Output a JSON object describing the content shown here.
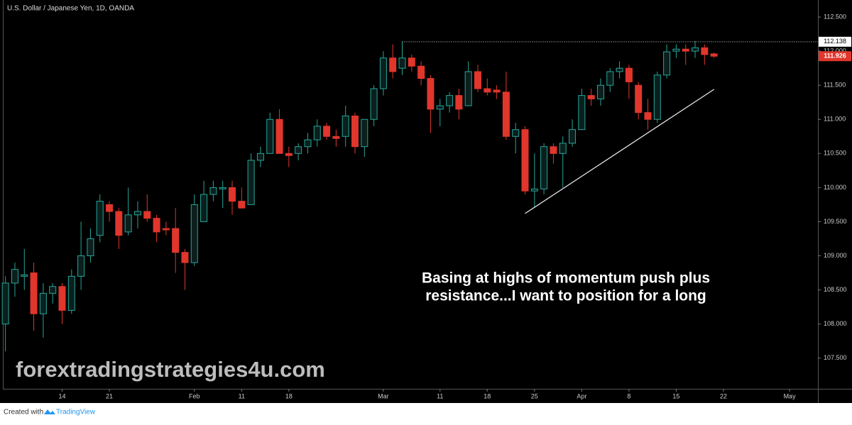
{
  "chart_data": {
    "type": "candlestick",
    "title": "U.S. Dollar / Japanese Yen, 1D, OANDA",
    "open": [
      108.0,
      108.6,
      108.7,
      108.75,
      108.15,
      108.45,
      108.55,
      108.2,
      108.7,
      109.0,
      109.3,
      109.75,
      109.65,
      109.35,
      109.6,
      109.65,
      109.55,
      109.4,
      109.4,
      109.05,
      108.9,
      109.5,
      109.9,
      109.98,
      110.0,
      109.8,
      109.75,
      110.4,
      110.5,
      111.0,
      110.5,
      110.5,
      110.6,
      110.7,
      110.9,
      110.75,
      110.75,
      111.05,
      110.6,
      111.0,
      111.45,
      111.9,
      111.75,
      111.9,
      111.78,
      111.6,
      111.15,
      111.2,
      111.35,
      111.2,
      111.7,
      111.45,
      111.43,
      111.4,
      110.75,
      110.85,
      109.95,
      109.98,
      110.6,
      110.5,
      110.65,
      110.85,
      111.35,
      111.3,
      111.5,
      111.7,
      111.75,
      111.5,
      111.1,
      111.0,
      111.65,
      112.0,
      112.03,
      112.0,
      112.05,
      111.96
    ],
    "high": [
      108.7,
      108.9,
      109.1,
      108.9,
      108.6,
      108.6,
      108.6,
      108.8,
      109.5,
      109.4,
      109.9,
      109.8,
      109.7,
      110.0,
      109.8,
      109.9,
      109.6,
      109.5,
      109.7,
      109.1,
      109.9,
      110.1,
      110.1,
      110.1,
      110.1,
      110.0,
      110.5,
      110.6,
      111.1,
      111.15,
      110.6,
      110.65,
      110.8,
      111.0,
      110.95,
      110.85,
      111.2,
      111.1,
      111.0,
      111.5,
      112.0,
      112.1,
      112.14,
      111.95,
      111.85,
      111.65,
      111.3,
      111.4,
      111.45,
      111.85,
      111.8,
      111.6,
      111.5,
      111.7,
      110.95,
      110.9,
      110.5,
      110.65,
      110.65,
      110.75,
      111.0,
      111.45,
      111.45,
      111.6,
      111.75,
      111.85,
      111.8,
      111.55,
      111.3,
      111.7,
      112.1,
      112.1,
      112.1,
      112.15,
      112.1,
      111.98
    ],
    "low": [
      107.6,
      108.4,
      108.5,
      107.9,
      107.8,
      108.3,
      108.0,
      108.15,
      108.5,
      108.9,
      109.2,
      109.5,
      109.1,
      109.3,
      109.4,
      109.5,
      109.2,
      109.3,
      108.75,
      108.5,
      108.85,
      109.5,
      109.8,
      109.7,
      109.6,
      109.7,
      109.75,
      110.3,
      110.5,
      110.5,
      110.3,
      110.4,
      110.5,
      110.6,
      110.7,
      110.6,
      110.6,
      110.5,
      110.45,
      110.9,
      111.35,
      111.6,
      111.65,
      111.7,
      111.5,
      110.8,
      110.9,
      111.1,
      111.0,
      111.2,
      111.4,
      111.35,
      111.3,
      110.7,
      110.5,
      109.9,
      109.7,
      109.9,
      110.35,
      110.0,
      110.6,
      110.85,
      111.2,
      111.2,
      111.4,
      111.6,
      111.3,
      111.0,
      110.85,
      110.95,
      111.6,
      111.9,
      111.8,
      111.9,
      111.8,
      111.9
    ],
    "close": [
      108.6,
      108.8,
      108.72,
      108.15,
      108.45,
      108.55,
      108.2,
      108.7,
      109.0,
      109.25,
      109.8,
      109.65,
      109.3,
      109.6,
      109.65,
      109.55,
      109.35,
      109.38,
      109.05,
      108.9,
      109.75,
      109.9,
      110.0,
      110.0,
      109.8,
      109.7,
      110.4,
      110.5,
      111.0,
      110.5,
      110.47,
      110.6,
      110.7,
      110.9,
      110.75,
      110.72,
      111.05,
      110.6,
      111.0,
      111.45,
      111.9,
      111.7,
      111.9,
      111.78,
      111.6,
      111.15,
      111.2,
      111.35,
      111.15,
      111.7,
      111.45,
      111.4,
      111.4,
      110.75,
      110.85,
      109.95,
      109.98,
      110.6,
      110.5,
      110.65,
      110.85,
      111.35,
      111.3,
      111.5,
      111.7,
      111.75,
      111.55,
      111.1,
      111.0,
      111.65,
      111.99,
      112.03,
      112.0,
      112.05,
      111.95,
      111.926
    ],
    "up_color": "#26a69a",
    "down_color": "#e0362c",
    "xlim": [
      -0.2,
      86.0
    ],
    "xticks": [
      {
        "value": 6,
        "label": "14"
      },
      {
        "value": 11,
        "label": "21"
      },
      {
        "value": 20,
        "label": "Feb"
      },
      {
        "value": 25,
        "label": "11"
      },
      {
        "value": 30,
        "label": "18"
      },
      {
        "value": 40,
        "label": "Mar"
      },
      {
        "value": 46,
        "label": "11"
      },
      {
        "value": 51,
        "label": "18"
      },
      {
        "value": 56,
        "label": "25"
      },
      {
        "value": 61,
        "label": "Apr"
      },
      {
        "value": 66,
        "label": "8"
      },
      {
        "value": 71,
        "label": "15"
      },
      {
        "value": 76,
        "label": "22"
      },
      {
        "value": 83,
        "label": "May"
      }
    ],
    "ylim": [
      107.05,
      112.75
    ],
    "yticks": [
      {
        "value": 107.5,
        "label": "107.500"
      },
      {
        "value": 108,
        "label": "108.000"
      },
      {
        "value": 108.5,
        "label": "108.500"
      },
      {
        "value": 109,
        "label": "109.000"
      },
      {
        "value": 109.5,
        "label": "109.500"
      },
      {
        "value": 110,
        "label": "110.000"
      },
      {
        "value": 110.5,
        "label": "110.500"
      },
      {
        "value": 111,
        "label": "111.000"
      },
      {
        "value": 111.5,
        "label": "111.500"
      },
      {
        "value": 112,
        "label": "112.000"
      },
      {
        "value": 112.5,
        "label": "112.500"
      }
    ],
    "resistance": {
      "value": 112.138,
      "start": 42
    },
    "last_price": 111.926,
    "trendline": {
      "x": [
        55,
        75
      ],
      "y": [
        109.62,
        111.44
      ]
    },
    "annotation": [
      "Basing at highs of momentum push plus",
      "resistance...I want to position for a long"
    ],
    "watermark": "forextradingstrategies4u.com"
  },
  "footer": {
    "prefix": "Created with",
    "brand": "TradingView"
  }
}
